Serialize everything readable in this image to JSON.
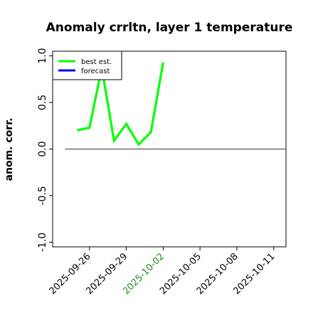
{
  "chart_data": {
    "type": "line",
    "title": "Anomaly crrltn, layer 1 temperature",
    "xlabel": "",
    "ylabel": "anom. corr.",
    "ylim": [
      -1.05,
      1.05
    ],
    "xlim": [
      "2025-09-23",
      "2025-10-12"
    ],
    "yticks": [
      "1.0",
      "0.5",
      "0.0",
      "-0.5",
      "-1.0"
    ],
    "ytick_values": [
      1.0,
      0.5,
      0.0,
      -0.5,
      -1.0
    ],
    "xticks": [
      "2025-09-26",
      "2025-09-29",
      "2025-10-02",
      "2025-10-05",
      "2025-10-08",
      "2025-10-11"
    ],
    "highlight_xtick": "2025-10-02",
    "highlight_color": "#228B22",
    "series": [
      {
        "name": "best est.",
        "color": "#00ff00",
        "x": [
          "2025-09-25",
          "2025-09-26",
          "2025-09-27",
          "2025-09-28",
          "2025-09-29",
          "2025-09-30",
          "2025-10-01",
          "2025-10-02"
        ],
        "values": [
          0.2,
          0.23,
          0.87,
          0.09,
          0.27,
          0.05,
          0.18,
          0.93
        ]
      },
      {
        "name": "forecast",
        "color": "#0000ff",
        "x": [],
        "values": []
      }
    ],
    "reference_line": {
      "y": 0.0,
      "color": "#555555",
      "x_start": "2025-09-24",
      "x_end": "2025-10-12"
    },
    "legend_position": "top-left",
    "grid": false
  }
}
